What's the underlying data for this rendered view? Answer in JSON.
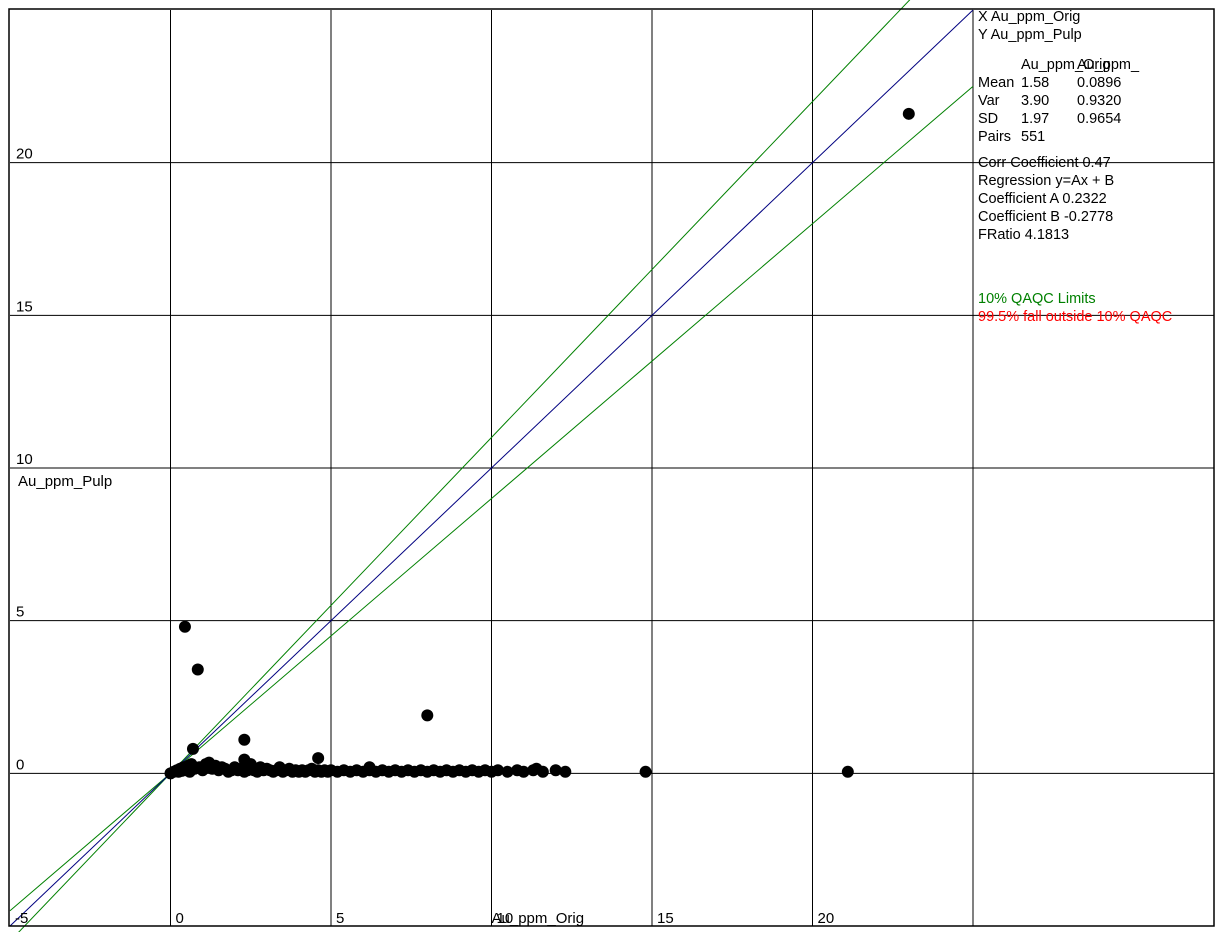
{
  "chart_data": {
    "type": "scatter",
    "xlabel": "Au_ppm_Orig",
    "ylabel": "Au_ppm_Pulp",
    "xlim": [
      -5,
      25
    ],
    "ylim": [
      -5,
      25
    ],
    "x_ticks": [
      "-5",
      "0",
      "5",
      "10",
      "15",
      "20"
    ],
    "y_ticks": [
      "0",
      "5",
      "10",
      "15",
      "20"
    ],
    "grid": true,
    "reference_lines": {
      "unity_color": "#000080",
      "limit_color": "#008000",
      "limit_percent": 10
    },
    "point_color": "#000000",
    "points": [
      [
        0.0,
        0.0
      ],
      [
        0.1,
        0.05
      ],
      [
        0.2,
        0.1
      ],
      [
        0.25,
        0.05
      ],
      [
        0.3,
        0.15
      ],
      [
        0.35,
        0.08
      ],
      [
        0.4,
        0.2
      ],
      [
        0.45,
        4.8
      ],
      [
        0.5,
        0.1
      ],
      [
        0.55,
        0.25
      ],
      [
        0.6,
        0.05
      ],
      [
        0.65,
        0.3
      ],
      [
        0.7,
        0.8
      ],
      [
        0.75,
        0.15
      ],
      [
        0.85,
        3.4
      ],
      [
        0.9,
        0.2
      ],
      [
        1.0,
        0.1
      ],
      [
        1.1,
        0.3
      ],
      [
        1.2,
        0.35
      ],
      [
        1.3,
        0.15
      ],
      [
        1.4,
        0.25
      ],
      [
        1.5,
        0.1
      ],
      [
        1.6,
        0.2
      ],
      [
        1.7,
        0.15
      ],
      [
        1.8,
        0.05
      ],
      [
        1.9,
        0.1
      ],
      [
        2.0,
        0.2
      ],
      [
        2.1,
        0.1
      ],
      [
        2.2,
        0.15
      ],
      [
        2.3,
        0.05
      ],
      [
        2.4,
        0.1
      ],
      [
        2.5,
        0.15
      ],
      [
        2.6,
        0.1
      ],
      [
        2.7,
        0.05
      ],
      [
        2.8,
        0.2
      ],
      [
        2.9,
        0.1
      ],
      [
        3.0,
        0.15
      ],
      [
        3.1,
        0.1
      ],
      [
        3.2,
        0.05
      ],
      [
        3.3,
        0.1
      ],
      [
        3.4,
        0.2
      ],
      [
        3.5,
        0.05
      ],
      [
        3.6,
        0.1
      ],
      [
        3.7,
        0.15
      ],
      [
        3.8,
        0.05
      ],
      [
        3.9,
        0.1
      ],
      [
        4.0,
        0.05
      ],
      [
        4.1,
        0.1
      ],
      [
        4.2,
        0.05
      ],
      [
        4.3,
        0.1
      ],
      [
        4.4,
        0.15
      ],
      [
        4.5,
        0.05
      ],
      [
        4.6,
        0.1
      ],
      [
        4.7,
        0.05
      ],
      [
        4.8,
        0.1
      ],
      [
        4.9,
        0.05
      ],
      [
        5.0,
        0.1
      ],
      [
        5.2,
        0.05
      ],
      [
        5.4,
        0.1
      ],
      [
        5.6,
        0.05
      ],
      [
        5.8,
        0.1
      ],
      [
        6.0,
        0.05
      ],
      [
        6.2,
        0.1
      ],
      [
        6.4,
        0.05
      ],
      [
        6.6,
        0.1
      ],
      [
        6.8,
        0.05
      ],
      [
        7.0,
        0.1
      ],
      [
        7.2,
        0.05
      ],
      [
        7.4,
        0.1
      ],
      [
        7.6,
        0.05
      ],
      [
        7.8,
        0.1
      ],
      [
        8.0,
        0.05
      ],
      [
        8.2,
        0.1
      ],
      [
        8.4,
        0.05
      ],
      [
        8.6,
        0.1
      ],
      [
        8.8,
        0.05
      ],
      [
        9.0,
        0.1
      ],
      [
        9.2,
        0.05
      ],
      [
        9.4,
        0.1
      ],
      [
        9.6,
        0.05
      ],
      [
        9.8,
        0.1
      ],
      [
        10.0,
        0.05
      ],
      [
        10.2,
        0.1
      ],
      [
        10.5,
        0.05
      ],
      [
        10.8,
        0.1
      ],
      [
        11.0,
        0.05
      ],
      [
        11.3,
        0.1
      ],
      [
        11.6,
        0.05
      ],
      [
        12.0,
        0.1
      ],
      [
        12.3,
        0.05
      ],
      [
        2.3,
        1.1
      ],
      [
        2.3,
        0.45
      ],
      [
        2.5,
        0.3
      ],
      [
        4.6,
        0.5
      ],
      [
        6.2,
        0.2
      ],
      [
        8.0,
        1.9
      ],
      [
        11.4,
        0.15
      ],
      [
        14.8,
        0.05
      ],
      [
        21.1,
        0.05
      ],
      [
        23.0,
        21.6
      ]
    ]
  },
  "stats_panel": {
    "x_var": "X Au_ppm_Orig",
    "y_var": "Y Au_ppm_Pulp",
    "col_header_1": "Au_ppm_Orig",
    "col_header_2": "Au_ppm_",
    "rows": [
      {
        "label": "Mean",
        "v1": "1.58",
        "v2": "0.0896"
      },
      {
        "label": "Var",
        "v1": "3.90",
        "v2": "0.9320"
      },
      {
        "label": "SD",
        "v1": "1.97",
        "v2": "0.9654"
      },
      {
        "label": "Pairs",
        "v1": "551",
        "v2": ""
      }
    ],
    "corr": "Corr Coefficient 0.47",
    "regression": "Regression  y=Ax + B",
    "coef_a": "Coefficient A 0.2322",
    "coef_b": "Coefficient B -0.2778",
    "fratio": "FRatio 4.1813",
    "qaqc_limits": "10% QAQC Limits",
    "qaqc_outside": "99.5% fall outside 10% QAQC",
    "green": "#008000",
    "red": "#ff0000"
  }
}
